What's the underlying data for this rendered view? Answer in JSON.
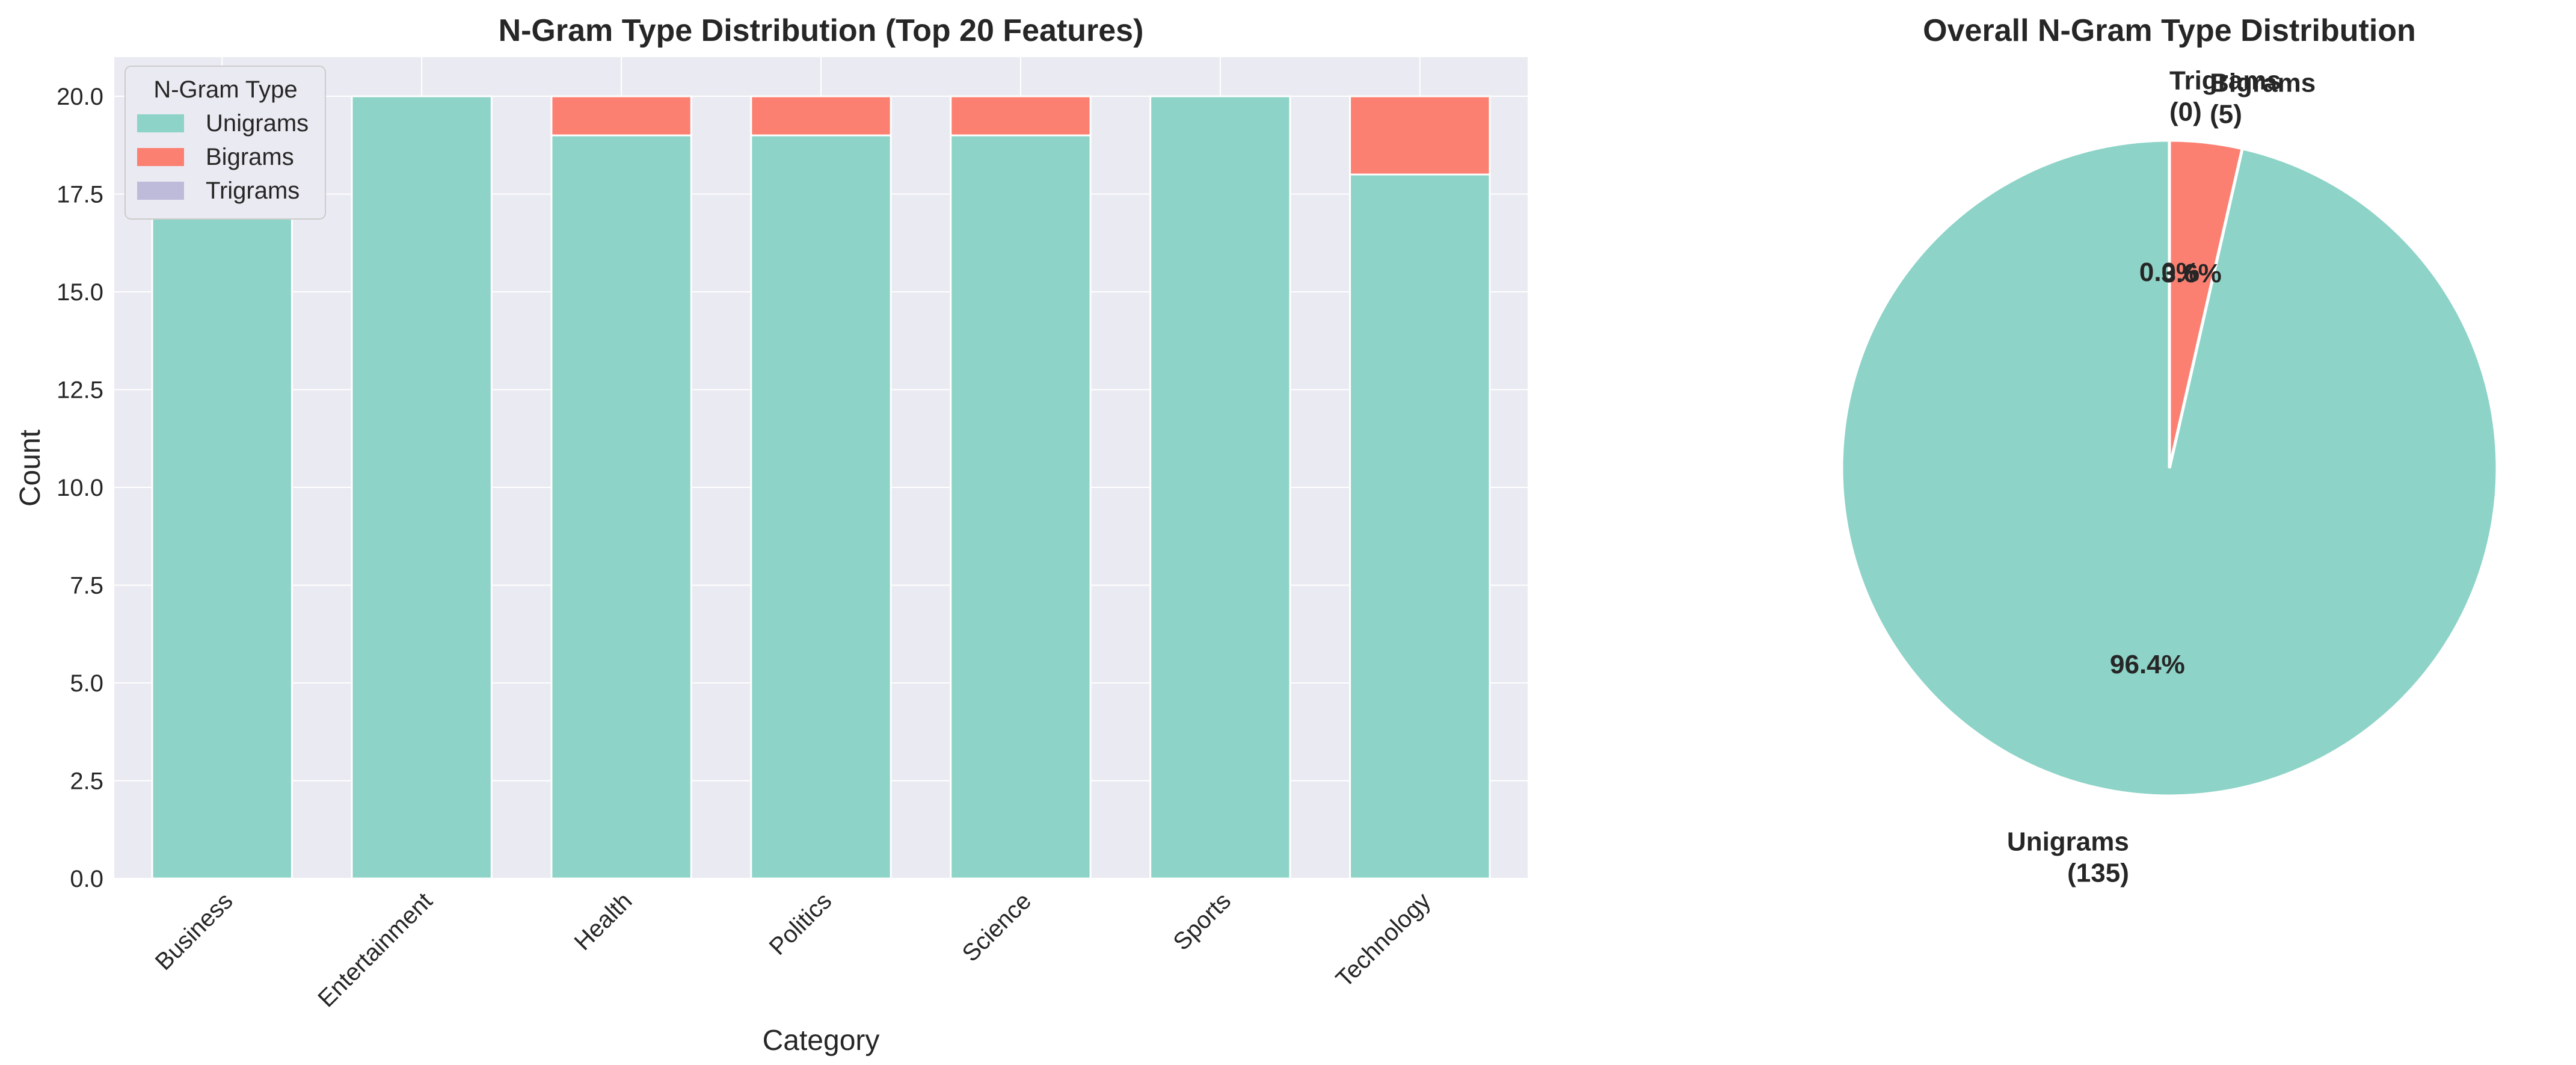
{
  "chart_data": [
    {
      "type": "bar",
      "stacked": true,
      "title": "N-Gram Type Distribution (Top 20 Features)",
      "xlabel": "Category",
      "ylabel": "Count",
      "ylim": [
        0,
        21
      ],
      "yticks": [
        "0.0",
        "2.5",
        "5.0",
        "7.5",
        "10.0",
        "12.5",
        "15.0",
        "17.5",
        "20.0"
      ],
      "grid": true,
      "legend_title": "N-Gram Type",
      "legend_position": "top-left",
      "categories": [
        "Business",
        "Entertainment",
        "Health",
        "Politics",
        "Science",
        "Sports",
        "Technology"
      ],
      "series": [
        {
          "name": "Unigrams",
          "color": "#8dd3c7",
          "values": [
            20,
            20,
            19,
            19,
            19,
            20,
            18
          ]
        },
        {
          "name": "Bigrams",
          "color": "#fb8072",
          "values": [
            0,
            0,
            1,
            1,
            1,
            0,
            2
          ]
        },
        {
          "name": "Trigrams",
          "color": "#bebada",
          "values": [
            0,
            0,
            0,
            0,
            0,
            0,
            0
          ]
        }
      ]
    },
    {
      "type": "pie",
      "title": "Overall N-Gram Type Distribution",
      "slices": [
        {
          "name": "Unigrams",
          "count_label": "(135)",
          "value": 135,
          "percent_label": "96.4%",
          "color": "#8dd3c7"
        },
        {
          "name": "Bigrams",
          "count_label": "(5)",
          "value": 5,
          "percent_label": "3.6%",
          "color": "#fb8072"
        },
        {
          "name": "Trigrams",
          "count_label": "(0)",
          "value": 0,
          "percent_label": "0.0%",
          "color": "#bebada"
        }
      ]
    }
  ]
}
